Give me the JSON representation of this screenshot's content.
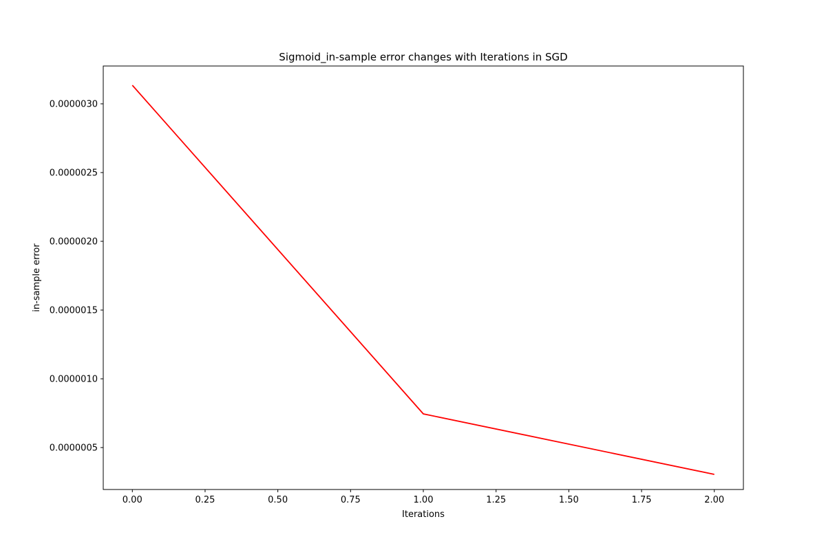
{
  "chart_data": {
    "type": "line",
    "title": "Sigmoid_in-sample error changes with Iterations in SGD",
    "xlabel": "Iterations",
    "ylabel": "in-sample error",
    "xlim": [
      -0.1,
      2.1
    ],
    "ylim": [
      1.95e-07,
      3.275e-06
    ],
    "xticks": [
      0.0,
      0.25,
      0.5,
      0.75,
      1.0,
      1.25,
      1.5,
      1.75,
      2.0
    ],
    "xtick_labels": [
      "0.00",
      "0.25",
      "0.50",
      "0.75",
      "1.00",
      "1.25",
      "1.50",
      "1.75",
      "2.00"
    ],
    "yticks": [
      5e-07,
      1e-06,
      1.5e-06,
      2e-06,
      2.5e-06,
      3e-06
    ],
    "ytick_labels": [
      "0.0000005",
      "0.0000010",
      "0.0000015",
      "0.0000020",
      "0.0000025",
      "0.0000030"
    ],
    "grid": false,
    "series": [
      {
        "color": "#ff0000",
        "x": [
          0,
          1,
          2
        ],
        "y": [
          3.135e-06,
          7.45e-07,
          3.05e-07
        ]
      }
    ]
  }
}
